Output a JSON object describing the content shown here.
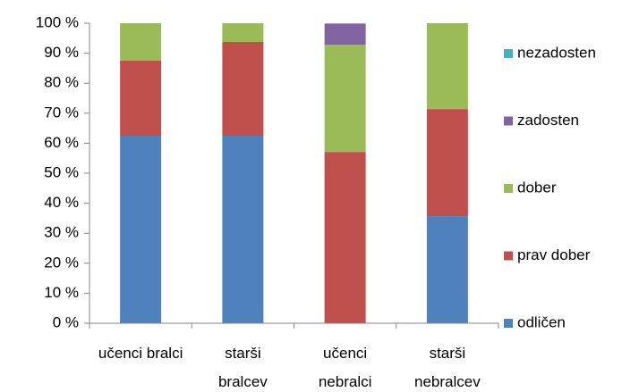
{
  "chart_data": {
    "type": "stacked_bar_percent",
    "categories": [
      "učenci bralci",
      "starši bralcev",
      "učenci nebralci",
      "starši nebralcev"
    ],
    "series": [
      {
        "name": "odličen",
        "color": "#4f81bd",
        "values": [
          62.5,
          62.5,
          0,
          35.7
        ]
      },
      {
        "name": "prav dober",
        "color": "#c0504d",
        "values": [
          25,
          31.25,
          57.1,
          35.7
        ]
      },
      {
        "name": "dober",
        "color": "#9bbb59",
        "values": [
          12.5,
          6.25,
          35.7,
          28.6
        ]
      },
      {
        "name": "zadosten",
        "color": "#8064a2",
        "values": [
          0,
          0,
          7.1,
          0
        ]
      },
      {
        "name": "nezadosten",
        "color": "#4bacc6",
        "values": [
          0,
          0,
          0,
          0
        ]
      }
    ],
    "ylim": [
      0,
      100
    ],
    "yticks": [
      {
        "value": 0,
        "label": "0 %"
      },
      {
        "value": 10,
        "label": "10 %"
      },
      {
        "value": 20,
        "label": "20 %"
      },
      {
        "value": 30,
        "label": "30 %"
      },
      {
        "value": 40,
        "label": "40 %"
      },
      {
        "value": 50,
        "label": "50 %"
      },
      {
        "value": 60,
        "label": "60 %"
      },
      {
        "value": 70,
        "label": "70 %"
      },
      {
        "value": 80,
        "label": "80 %"
      },
      {
        "value": 90,
        "label": "90 %"
      },
      {
        "value": 100,
        "label": "100 %"
      }
    ],
    "legend": "right",
    "grid": false
  }
}
